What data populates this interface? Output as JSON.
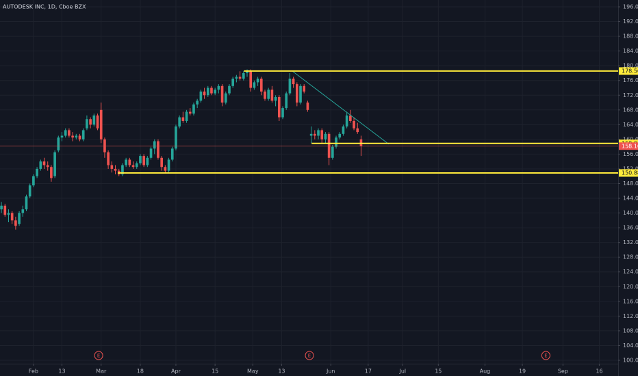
{
  "chart_data": {
    "type": "candlestick",
    "title": "AUTODESK INC, 1D, Cboe BZX",
    "up_color": "#26a69a",
    "down_color": "#ef5350",
    "grid": true,
    "xlim": [
      -0.4,
      173.2
    ],
    "ylim": [
      99.07,
      197.86
    ],
    "xticks": [
      {
        "value": 9,
        "label": "Feb"
      },
      {
        "value": 17,
        "label": "13"
      },
      {
        "value": 28,
        "label": "Mar"
      },
      {
        "value": 39,
        "label": "18"
      },
      {
        "value": 49,
        "label": "Apr"
      },
      {
        "value": 60,
        "label": "15"
      },
      {
        "value": 70.6,
        "label": "May"
      },
      {
        "value": 78.7,
        "label": "13"
      },
      {
        "value": 92.5,
        "label": "Jun"
      },
      {
        "value": 103,
        "label": "17"
      },
      {
        "value": 112.7,
        "label": "Jul"
      },
      {
        "value": 122.7,
        "label": "15"
      },
      {
        "value": 135.8,
        "label": "Aug"
      },
      {
        "value": 146.3,
        "label": "19"
      },
      {
        "value": 157.7,
        "label": "Sep"
      },
      {
        "value": 167.9,
        "label": "16"
      }
    ],
    "yticks": [
      {
        "value": 100,
        "label": "100.00"
      },
      {
        "value": 104,
        "label": "104.00"
      },
      {
        "value": 108,
        "label": "108.00"
      },
      {
        "value": 112,
        "label": "112.00"
      },
      {
        "value": 116,
        "label": "116.00"
      },
      {
        "value": 120,
        "label": "120.00"
      },
      {
        "value": 124,
        "label": "124.00"
      },
      {
        "value": 128,
        "label": "128.00"
      },
      {
        "value": 132,
        "label": "132.00"
      },
      {
        "value": 136,
        "label": "136.00"
      },
      {
        "value": 140,
        "label": "140.00"
      },
      {
        "value": 144,
        "label": "144.00"
      },
      {
        "value": 148,
        "label": "148.00"
      },
      {
        "value": 152,
        "label": "152.00"
      },
      {
        "value": 156,
        "label": "156.00"
      },
      {
        "value": 160,
        "label": "160.00"
      },
      {
        "value": 164,
        "label": "164.00"
      },
      {
        "value": 168,
        "label": "168.00"
      },
      {
        "value": 172,
        "label": "172.00"
      },
      {
        "value": 176,
        "label": "176.00"
      },
      {
        "value": 180,
        "label": "180.00"
      },
      {
        "value": 184,
        "label": "184.00"
      },
      {
        "value": 188,
        "label": "188.00"
      },
      {
        "value": 192,
        "label": "192.00"
      },
      {
        "value": 196,
        "label": "196.00"
      }
    ],
    "candles": [
      [
        141,
        143,
        140,
        142
      ],
      [
        142,
        142.5,
        139,
        139.5
      ],
      [
        139.5,
        141,
        137.5,
        140
      ],
      [
        140,
        140.5,
        137,
        138
      ],
      [
        138,
        139,
        135.5,
        136.5
      ],
      [
        137,
        140.5,
        136.5,
        140
      ],
      [
        140,
        142,
        139,
        141
      ],
      [
        141,
        145,
        140.5,
        144.5
      ],
      [
        144.5,
        148,
        144,
        147.5
      ],
      [
        147.5,
        150.5,
        147,
        150
      ],
      [
        150,
        152.5,
        149.5,
        152
      ],
      [
        152,
        154.5,
        151.5,
        154
      ],
      [
        154,
        155,
        152,
        153
      ],
      [
        153,
        154,
        151.5,
        152.5
      ],
      [
        152.5,
        153,
        148.5,
        149.5
      ],
      [
        150,
        157,
        149.5,
        156.5
      ],
      [
        157,
        161,
        156.5,
        160.5
      ],
      [
        160.5,
        162,
        159.5,
        161
      ],
      [
        161,
        163,
        160.5,
        162.5
      ],
      [
        162.5,
        163,
        160.5,
        161
      ],
      [
        161,
        162,
        159.5,
        160.5
      ],
      [
        160.5,
        161.5,
        160,
        161
      ],
      [
        161,
        161.5,
        159.5,
        160
      ],
      [
        160,
        163,
        159.5,
        162.5
      ],
      [
        163,
        166.5,
        162.5,
        165.5
      ],
      [
        165.5,
        166,
        163,
        164
      ],
      [
        164,
        167,
        163.5,
        166.5
      ],
      [
        166.5,
        167,
        162.5,
        163
      ],
      [
        168,
        170,
        159,
        160
      ],
      [
        160,
        160.5,
        155,
        156.5
      ],
      [
        156.5,
        157,
        152,
        153
      ],
      [
        153,
        154,
        151,
        152
      ],
      [
        152,
        153,
        150.5,
        151.5
      ],
      [
        151.5,
        152,
        150,
        150.5
      ],
      [
        150.5,
        153.5,
        150,
        153
      ],
      [
        153,
        155,
        152.5,
        154.5
      ],
      [
        154.5,
        155,
        152.5,
        153
      ],
      [
        153,
        154,
        152,
        152.5
      ],
      [
        152.5,
        154,
        152,
        153.5
      ],
      [
        153.5,
        156,
        153,
        155.5
      ],
      [
        155.5,
        156,
        152.5,
        153
      ],
      [
        153,
        155.5,
        152.5,
        155
      ],
      [
        155,
        158,
        154.5,
        157.5
      ],
      [
        157.5,
        160,
        156,
        159.5
      ],
      [
        159.5,
        160,
        154.5,
        155
      ],
      [
        155,
        155.5,
        151.5,
        152.5
      ],
      [
        152.5,
        153,
        151,
        151.5
      ],
      [
        151.5,
        155,
        151,
        154.5
      ],
      [
        154.5,
        158,
        154,
        157.5
      ],
      [
        157.5,
        164,
        157,
        163.5
      ],
      [
        163.5,
        166.5,
        163,
        166
      ],
      [
        166,
        167.5,
        164.5,
        165
      ],
      [
        165,
        168,
        164.5,
        167.5
      ],
      [
        167.5,
        168.5,
        166.5,
        167
      ],
      [
        167,
        170,
        166.5,
        169.5
      ],
      [
        169.5,
        171,
        168.5,
        170.5
      ],
      [
        170.5,
        173.5,
        170,
        173
      ],
      [
        173,
        174,
        171,
        172
      ],
      [
        172,
        174.5,
        171.5,
        174
      ],
      [
        174,
        174.5,
        172,
        172.5
      ],
      [
        172.5,
        174,
        172,
        173.5
      ],
      [
        173.5,
        175,
        172.5,
        174.5
      ],
      [
        174.5,
        175,
        169,
        170
      ],
      [
        170,
        173,
        169.5,
        172.5
      ],
      [
        172.5,
        175,
        172,
        174.5
      ],
      [
        174.5,
        177,
        174,
        176.5
      ],
      [
        176.5,
        177.5,
        175.5,
        177
      ],
      [
        177,
        178.5,
        176,
        176.5
      ],
      [
        176.5,
        178.5,
        176,
        178
      ],
      [
        178,
        179,
        177,
        178.5
      ],
      [
        178.5,
        179,
        173,
        174
      ],
      [
        174,
        176,
        173.5,
        175.5
      ],
      [
        175.5,
        177,
        174.5,
        176.5
      ],
      [
        176.5,
        177,
        172,
        173
      ],
      [
        173,
        173.5,
        170.5,
        171
      ],
      [
        171,
        174,
        170.5,
        173.5
      ],
      [
        173.5,
        174.5,
        170,
        170.5
      ],
      [
        170.5,
        172,
        169,
        171.5
      ],
      [
        171.5,
        172,
        165,
        166
      ],
      [
        166,
        169,
        165.5,
        168.5
      ],
      [
        168.5,
        173,
        168,
        172.5
      ],
      [
        172.5,
        178,
        172,
        176.5
      ],
      [
        176.5,
        177,
        174,
        175
      ],
      [
        175,
        175.5,
        169,
        170
      ],
      [
        170,
        175,
        169.5,
        174.5
      ],
      [
        174.5,
        175,
        172.5,
        173
      ],
      [
        170,
        170.5,
        167.5,
        168
      ],
      [
        161,
        163.5,
        159,
        161.5
      ],
      [
        161.5,
        162.5,
        160,
        161
      ],
      [
        161,
        163,
        160,
        162.5
      ],
      [
        162.5,
        163,
        159,
        160
      ],
      [
        160,
        162,
        159,
        161.5
      ],
      [
        161.5,
        162,
        153,
        155
      ],
      [
        155,
        158.5,
        154.5,
        158
      ],
      [
        158,
        161,
        157.5,
        160.5
      ],
      [
        160.5,
        162,
        160,
        161.5
      ],
      [
        161.5,
        164,
        161,
        163.5
      ],
      [
        163.5,
        167.5,
        163,
        166.5
      ],
      [
        166.5,
        168,
        164.5,
        165
      ],
      [
        165,
        166,
        162.5,
        163
      ],
      [
        163,
        164.5,
        161.5,
        162
      ],
      [
        160,
        161,
        155.5,
        158.16
      ]
    ],
    "levels": {
      "color": "#ffeb3b",
      "items": [
        {
          "value": 178.56,
          "label": "178.56",
          "start": 68.1
        },
        {
          "value": 158.91,
          "label": "158.91",
          "start": 87.1
        },
        {
          "value": 150.88,
          "label": "150.88",
          "start": 32.7
        }
      ]
    },
    "last_price": {
      "value": 158.16,
      "label": "158.16",
      "color": "#ef5350"
    },
    "trendline": {
      "color": "#26a69a",
      "x": [
        81.7,
        108.8
      ],
      "y": [
        178.55,
        158.7
      ]
    },
    "events": [
      {
        "x": 27.3,
        "label": "E"
      },
      {
        "x": 86.5,
        "label": "E"
      },
      {
        "x": 152.9,
        "label": "E"
      }
    ]
  }
}
